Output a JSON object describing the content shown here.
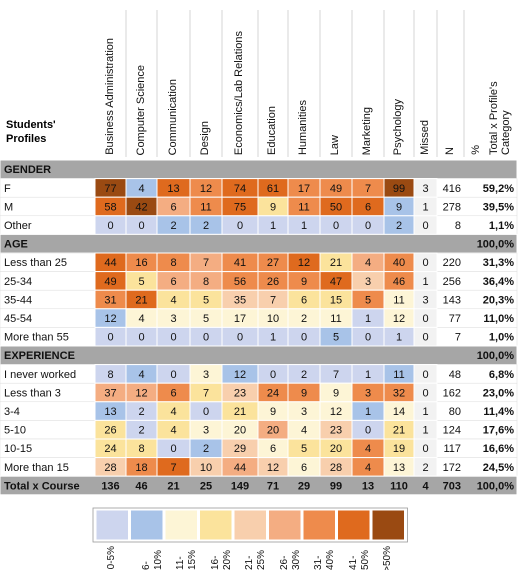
{
  "header": {
    "row_label": "Students' Profiles",
    "columns": [
      "Business Administration",
      "Computer Science",
      "Communication",
      "Design",
      "Economics/Lab Relations",
      "Education",
      "Humanities",
      "Law",
      "Marketing",
      "Psychology",
      "Missed",
      "N",
      "%",
      "Total x Profile's Category"
    ]
  },
  "sections": [
    {
      "title": "GENDER",
      "rows": [
        {
          "label": "F",
          "values": [
            77,
            4,
            13,
            12,
            74,
            61,
            17,
            49,
            7,
            99
          ],
          "missed": 3,
          "n": 416,
          "share": "59,2%",
          "colors": [
            "#9a4a12",
            "#a8c3e8",
            "#df6a1e",
            "#ee8b4c",
            "#df6a1e",
            "#df6a1e",
            "#ee8b4c",
            "#ee8b4c",
            "#ee8b4c",
            "#9a4a12"
          ]
        },
        {
          "label": "M",
          "values": [
            58,
            42,
            6,
            11,
            75,
            9,
            11,
            50,
            6,
            9
          ],
          "missed": 1,
          "n": 278,
          "share": "39,5%",
          "colors": [
            "#df6a1e",
            "#9a4a12",
            "#f4ad82",
            "#ee8b4c",
            "#df6a1e",
            "#fbe39c",
            "#ee8b4c",
            "#df6a1e",
            "#df6a1e",
            "#a8c3e8"
          ]
        },
        {
          "label": "Other",
          "values": [
            0,
            0,
            2,
            2,
            0,
            1,
            1,
            0,
            0,
            2
          ],
          "missed": 0,
          "n": 8,
          "share": "1,1%",
          "colors": [
            "#cdd5ee",
            "#cdd5ee",
            "#a8c3e8",
            "#a8c3e8",
            "#cdd5ee",
            "#cdd5ee",
            "#cdd5ee",
            "#cdd5ee",
            "#cdd5ee",
            "#a8c3e8"
          ]
        }
      ]
    },
    {
      "title": "AGE",
      "share": "100,0%",
      "rows": [
        {
          "label": "Less than 25",
          "values": [
            44,
            16,
            8,
            7,
            41,
            27,
            12,
            21,
            4,
            40
          ],
          "missed": 0,
          "n": 220,
          "share": "31,3%",
          "colors": [
            "#df6a1e",
            "#ee8b4c",
            "#ee8b4c",
            "#f4ad82",
            "#ee8b4c",
            "#ee8b4c",
            "#df6a1e",
            "#fbe39c",
            "#f4ad82",
            "#ee8b4c"
          ]
        },
        {
          "label": "25-34",
          "values": [
            49,
            5,
            6,
            8,
            56,
            26,
            9,
            47,
            3,
            46
          ],
          "missed": 1,
          "n": 256,
          "share": "36,4%",
          "colors": [
            "#df6a1e",
            "#fbe39c",
            "#f4ad82",
            "#f4ad82",
            "#ee8b4c",
            "#ee8b4c",
            "#ee8b4c",
            "#df6a1e",
            "#f8cfad",
            "#ee8b4c"
          ]
        },
        {
          "label": "35-44",
          "values": [
            31,
            21,
            4,
            5,
            35,
            7,
            6,
            15,
            5,
            11
          ],
          "missed": 3,
          "n": 143,
          "share": "20,3%",
          "colors": [
            "#ee8b4c",
            "#df6a1e",
            "#fbe39c",
            "#fbe39c",
            "#f8cfad",
            "#f8cfad",
            "#fbe39c",
            "#fbe39c",
            "#ee8b4c",
            "#fdf5d6"
          ]
        },
        {
          "label": "45-54",
          "values": [
            12,
            4,
            3,
            5,
            17,
            10,
            2,
            11,
            1,
            12
          ],
          "missed": 0,
          "n": 77,
          "share": "11,0%",
          "colors": [
            "#a8c3e8",
            "#fdf5d6",
            "#fdf5d6",
            "#fdf5d6",
            "#fdf5d6",
            "#fdf5d6",
            "#fdf5d6",
            "#fdf5d6",
            "#cdd5ee",
            "#fdf5d6"
          ]
        },
        {
          "label": "More than 55",
          "values": [
            0,
            0,
            0,
            0,
            0,
            1,
            0,
            5,
            0,
            1
          ],
          "missed": 0,
          "n": 7,
          "share": "1,0%",
          "colors": [
            "#cdd5ee",
            "#cdd5ee",
            "#cdd5ee",
            "#cdd5ee",
            "#cdd5ee",
            "#cdd5ee",
            "#cdd5ee",
            "#a8c3e8",
            "#cdd5ee",
            "#cdd5ee"
          ]
        }
      ]
    },
    {
      "title": "EXPERIENCE",
      "share": "100,0%",
      "rows": [
        {
          "label": "I never worked",
          "values": [
            8,
            4,
            0,
            3,
            12,
            0,
            2,
            7,
            1,
            11
          ],
          "missed": 0,
          "n": 48,
          "share": "6,8%",
          "colors": [
            "#cdd5ee",
            "#a8c3e8",
            "#cdd5ee",
            "#fdf5d6",
            "#a8c3e8",
            "#cdd5ee",
            "#cdd5ee",
            "#cdd5ee",
            "#cdd5ee",
            "#a8c3e8"
          ]
        },
        {
          "label": "Less than 3",
          "values": [
            37,
            12,
            6,
            7,
            23,
            24,
            9,
            9,
            3,
            32
          ],
          "missed": 0,
          "n": 162,
          "share": "23,0%",
          "colors": [
            "#f4ad82",
            "#f4ad82",
            "#ee8b4c",
            "#fbe39c",
            "#f8cfad",
            "#ee8b4c",
            "#ee8b4c",
            "#fdf5d6",
            "#ee8b4c",
            "#ee8b4c"
          ]
        },
        {
          "label": "3-4",
          "values": [
            13,
            2,
            4,
            0,
            21,
            9,
            3,
            12,
            1,
            14
          ],
          "missed": 1,
          "n": 80,
          "share": "11,4%",
          "colors": [
            "#a8c3e8",
            "#cdd5ee",
            "#fbe39c",
            "#cdd5ee",
            "#fbe39c",
            "#fdf5d6",
            "#fdf5d6",
            "#fdf5d6",
            "#a8c3e8",
            "#fdf5d6"
          ]
        },
        {
          "label": "5-10",
          "values": [
            26,
            2,
            4,
            3,
            20,
            20,
            4,
            23,
            0,
            21
          ],
          "missed": 1,
          "n": 124,
          "share": "17,6%",
          "colors": [
            "#fbe39c",
            "#cdd5ee",
            "#fbe39c",
            "#fdf5d6",
            "#fdf5d6",
            "#f4ad82",
            "#fdf5d6",
            "#f8cfad",
            "#cdd5ee",
            "#fbe39c"
          ]
        },
        {
          "label": "10-15",
          "values": [
            24,
            8,
            0,
            2,
            29,
            6,
            5,
            20,
            4,
            19
          ],
          "missed": 0,
          "n": 117,
          "share": "16,6%",
          "colors": [
            "#fbe39c",
            "#fbe39c",
            "#cdd5ee",
            "#a8c3e8",
            "#f8cfad",
            "#fdf5d6",
            "#fbe39c",
            "#fbe39c",
            "#ee8b4c",
            "#fbe39c"
          ]
        },
        {
          "label": "More than 15",
          "values": [
            28,
            18,
            7,
            10,
            44,
            12,
            6,
            28,
            4,
            13
          ],
          "missed": 2,
          "n": 172,
          "share": "24,5%",
          "colors": [
            "#f8cfad",
            "#ee8b4c",
            "#df6a1e",
            "#f8cfad",
            "#f4ad82",
            "#f8cfad",
            "#fdf5d6",
            "#f8cfad",
            "#ee8b4c",
            "#fdf5d6"
          ]
        }
      ]
    }
  ],
  "total": {
    "label": "Total x Course",
    "values": [
      136,
      46,
      21,
      25,
      149,
      71,
      29,
      99,
      13,
      110
    ],
    "missed": 4,
    "n": 703,
    "share": "100,0%"
  },
  "legend": [
    {
      "label": "0-5%",
      "color": "#cdd5ee"
    },
    {
      "label": "6-10%",
      "color": "#a8c3e8"
    },
    {
      "label": "11-15%",
      "color": "#fdf5d6"
    },
    {
      "label": "16-20%",
      "color": "#fbe39c"
    },
    {
      "label": "21-25%",
      "color": "#f8cfad"
    },
    {
      "label": "26-30%",
      "color": "#f4ad82"
    },
    {
      "label": "31-40%",
      "color": "#ee8b4c"
    },
    {
      "label": "41-50%",
      "color": "#df6a1e"
    },
    {
      "label": ">50%",
      "color": "#9a4a12"
    }
  ]
}
